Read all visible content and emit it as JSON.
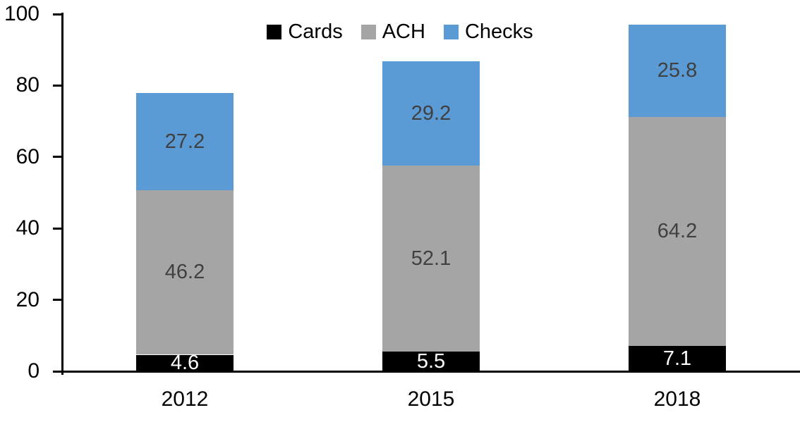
{
  "chart_data": {
    "type": "bar",
    "stacked": true,
    "title": "",
    "categories": [
      "2012",
      "2015",
      "2018"
    ],
    "series": [
      {
        "name": "Cards",
        "color": "#000000",
        "label_color": "#ffffff",
        "values": [
          4.6,
          5.5,
          7.1
        ],
        "labels": [
          "4.6",
          "5.5",
          "7.1"
        ]
      },
      {
        "name": "ACH",
        "color": "#A5A5A5",
        "label_color": "#404040",
        "values": [
          46.2,
          52.1,
          64.2
        ],
        "labels": [
          "46.2",
          "52.1",
          "64.2"
        ]
      },
      {
        "name": "Checks",
        "color": "#5B9BD5",
        "label_color": "#404040",
        "values": [
          27.2,
          29.2,
          25.8
        ],
        "labels": [
          "27.2",
          "29.2",
          "25.8"
        ]
      }
    ],
    "y_axis": {
      "min": 0,
      "max": 100,
      "tick_values": [
        0,
        20,
        40,
        60,
        80,
        100
      ],
      "tick_labels": [
        "0",
        "20",
        "40",
        "60",
        "80",
        "100"
      ]
    },
    "x_axis": {
      "labels": [
        "2012",
        "2015",
        "2018"
      ]
    },
    "legend": {
      "position": "top",
      "entries": [
        "Cards",
        "ACH",
        "Checks"
      ]
    },
    "grid": false,
    "axis_color": "#000000",
    "background_color": "#ffffff"
  }
}
